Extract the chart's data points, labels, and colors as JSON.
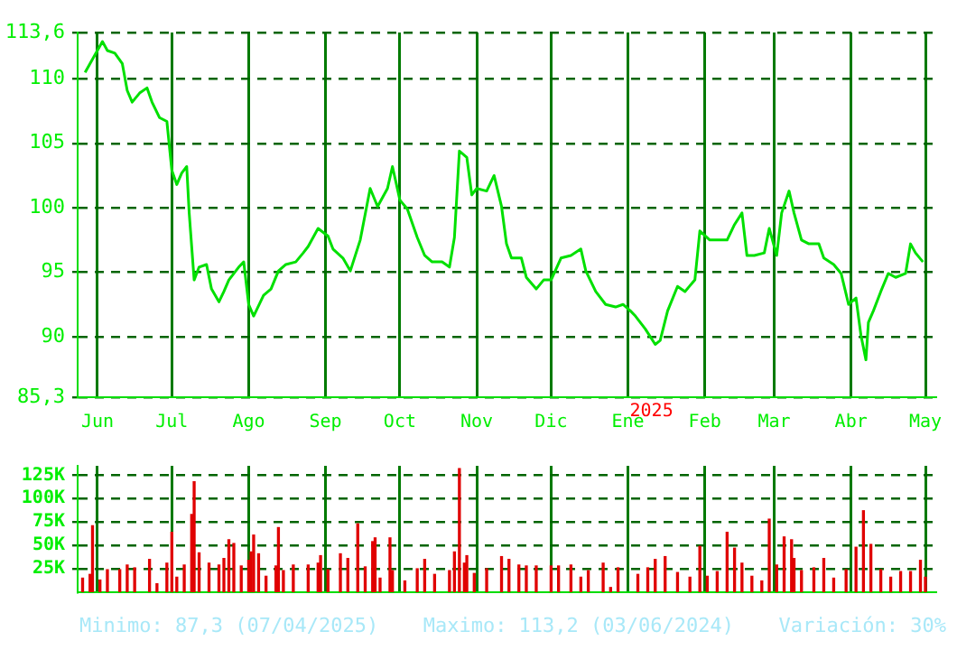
{
  "chart_data": [
    {
      "type": "line",
      "color": "#00e000",
      "x": [
        "2024-05-27",
        "2024-06-03",
        "2024-06-05",
        "2024-06-08",
        "2024-06-11",
        "2024-06-13",
        "2024-06-15",
        "2024-06-18",
        "2024-06-21",
        "2024-06-23",
        "2024-06-26",
        "2024-06-29",
        "2024-07-01",
        "2024-07-03",
        "2024-07-05",
        "2024-07-07",
        "2024-07-08",
        "2024-07-10",
        "2024-07-12",
        "2024-07-15",
        "2024-07-17",
        "2024-07-20",
        "2024-07-22",
        "2024-07-24",
        "2024-07-28",
        "2024-07-30",
        "2024-08-01",
        "2024-08-03",
        "2024-08-07",
        "2024-08-10",
        "2024-08-13",
        "2024-08-16",
        "2024-08-20",
        "2024-08-23",
        "2024-08-25",
        "2024-08-29",
        "2024-09-02",
        "2024-09-04",
        "2024-09-08",
        "2024-09-11",
        "2024-09-15",
        "2024-09-19",
        "2024-09-22",
        "2024-09-26",
        "2024-09-28",
        "2024-10-01",
        "2024-10-04",
        "2024-10-08",
        "2024-10-11",
        "2024-10-14",
        "2024-10-18",
        "2024-10-21",
        "2024-10-23",
        "2024-10-25",
        "2024-10-28",
        "2024-10-30",
        "2024-11-01",
        "2024-11-05",
        "2024-11-08",
        "2024-11-11",
        "2024-11-13",
        "2024-11-15",
        "2024-11-19",
        "2024-11-21",
        "2024-11-25",
        "2024-11-28",
        "2024-12-01",
        "2024-12-05",
        "2024-12-09",
        "2024-12-13",
        "2024-12-15",
        "2024-12-19",
        "2024-12-23",
        "2024-12-27",
        "2024-12-30",
        "2025-01-02",
        "2025-01-04",
        "2025-01-08",
        "2025-01-12",
        "2025-01-14",
        "2025-01-17",
        "2025-01-21",
        "2025-01-24",
        "2025-01-28",
        "2025-01-30",
        "2025-02-03",
        "2025-02-06",
        "2025-02-10",
        "2025-02-13",
        "2025-02-16",
        "2025-02-18",
        "2025-02-21",
        "2025-02-25",
        "2025-02-27",
        "2025-03-02",
        "2025-03-04",
        "2025-03-07",
        "2025-03-09",
        "2025-03-12",
        "2025-03-15",
        "2025-03-19",
        "2025-03-21",
        "2025-03-25",
        "2025-03-28",
        "2025-03-31",
        "2025-04-03",
        "2025-04-05",
        "2025-04-07",
        "2025-04-08",
        "2025-04-10",
        "2025-04-13",
        "2025-04-16",
        "2025-04-19",
        "2025-04-23",
        "2025-04-25",
        "2025-04-27",
        "2025-04-30"
      ],
      "values": [
        110.5,
        112.9,
        112.2,
        112.0,
        111.2,
        109.1,
        108.2,
        108.9,
        109.3,
        108.2,
        107.0,
        106.7,
        102.9,
        101.8,
        102.7,
        103.2,
        99.6,
        94.4,
        95.4,
        95.6,
        93.7,
        92.7,
        93.5,
        94.4,
        95.4,
        95.8,
        92.5,
        91.6,
        93.2,
        93.7,
        95.1,
        95.6,
        95.8,
        96.5,
        97.0,
        98.4,
        97.8,
        96.8,
        96.1,
        95.1,
        97.5,
        101.5,
        100.1,
        101.5,
        103.2,
        100.6,
        99.9,
        97.7,
        96.3,
        95.8,
        95.8,
        95.4,
        97.7,
        104.4,
        103.9,
        101.0,
        101.5,
        101.3,
        102.5,
        100.1,
        97.2,
        96.1,
        96.1,
        94.6,
        93.7,
        94.4,
        94.4,
        96.1,
        96.3,
        96.8,
        95.1,
        93.5,
        92.5,
        92.3,
        92.5,
        92.0,
        91.6,
        90.6,
        89.4,
        89.7,
        92.0,
        93.9,
        93.5,
        94.4,
        98.2,
        97.5,
        97.5,
        97.5,
        98.7,
        99.6,
        96.3,
        96.3,
        96.5,
        98.4,
        96.3,
        99.6,
        101.3,
        99.6,
        97.5,
        97.2,
        97.2,
        96.1,
        95.6,
        94.9,
        92.5,
        93.0,
        90.1,
        88.2,
        91.1,
        92.0,
        93.5,
        94.9,
        94.6,
        94.9,
        97.2,
        96.5,
        95.8
      ],
      "xlim": [
        "2024-05-24",
        "2025-05-05"
      ],
      "xticks": [
        {
          "value": "2024-06-01",
          "label": "Jun"
        },
        {
          "value": "2024-07-01",
          "label": "Jul"
        },
        {
          "value": "2024-08-01",
          "label": "Ago"
        },
        {
          "value": "2024-09-01",
          "label": "Sep"
        },
        {
          "value": "2024-10-01",
          "label": "Oct"
        },
        {
          "value": "2024-11-01",
          "label": "Nov"
        },
        {
          "value": "2024-12-01",
          "label": "Dic"
        },
        {
          "value": "2025-01-01",
          "label": "Ene"
        },
        {
          "value": "2025-02-01",
          "label": "Feb"
        },
        {
          "value": "2025-03-01",
          "label": "Mar"
        },
        {
          "value": "2025-04-01",
          "label": "Abr"
        },
        {
          "value": "2025-05-01",
          "label": "May"
        }
      ],
      "ylim": [
        85.3,
        113.6
      ],
      "yticks": [
        {
          "value": 85.3,
          "label": "85,3"
        },
        90,
        95,
        100,
        105,
        110,
        {
          "value": 113.6,
          "label": "113,6"
        }
      ],
      "grid": true,
      "annotations": [
        "2025"
      ]
    },
    {
      "type": "bar",
      "color": "#e00000",
      "x": [
        "2024-05-26",
        "2024-05-29",
        "2024-05-30",
        "2024-06-02",
        "2024-06-05",
        "2024-06-10",
        "2024-06-13",
        "2024-06-16",
        "2024-06-22",
        "2024-06-25",
        "2024-06-29",
        "2024-07-01",
        "2024-07-03",
        "2024-07-06",
        "2024-07-09",
        "2024-07-10",
        "2024-07-12",
        "2024-07-16",
        "2024-07-20",
        "2024-07-22",
        "2024-07-24",
        "2024-07-26",
        "2024-07-29",
        "2024-08-01",
        "2024-08-02",
        "2024-08-03",
        "2024-08-05",
        "2024-08-08",
        "2024-08-12",
        "2024-08-13",
        "2024-08-15",
        "2024-08-19",
        "2024-08-25",
        "2024-08-29",
        "2024-08-30",
        "2024-09-02",
        "2024-09-07",
        "2024-09-10",
        "2024-09-14",
        "2024-09-17",
        "2024-09-20",
        "2024-09-21",
        "2024-09-23",
        "2024-09-27",
        "2024-09-28",
        "2024-10-03",
        "2024-10-08",
        "2024-10-11",
        "2024-10-15",
        "2024-10-21",
        "2024-10-23",
        "2024-10-25",
        "2024-10-27",
        "2024-10-28",
        "2024-10-31",
        "2024-11-05",
        "2024-11-11",
        "2024-11-14",
        "2024-11-18",
        "2024-11-21",
        "2024-11-25",
        "2024-12-01",
        "2024-12-04",
        "2024-12-09",
        "2024-12-13",
        "2024-12-16",
        "2024-12-22",
        "2024-12-25",
        "2024-12-28",
        "2025-01-05",
        "2025-01-09",
        "2025-01-12",
        "2025-01-16",
        "2025-01-21",
        "2025-01-26",
        "2025-01-30",
        "2025-02-02",
        "2025-02-06",
        "2025-02-10",
        "2025-02-13",
        "2025-02-16",
        "2025-02-20",
        "2025-02-24",
        "2025-02-27",
        "2025-03-02",
        "2025-03-05",
        "2025-03-08",
        "2025-03-09",
        "2025-03-12",
        "2025-03-17",
        "2025-03-21",
        "2025-03-25",
        "2025-03-30",
        "2025-04-03",
        "2025-04-06",
        "2025-04-09",
        "2025-04-13",
        "2025-04-17",
        "2025-04-21",
        "2025-04-25",
        "2025-04-29",
        "2025-05-01"
      ],
      "xticks": [
        {
          "value": "2024-06-01",
          "label": null
        },
        {
          "value": "2024-07-01",
          "label": null
        },
        {
          "value": "2024-08-01",
          "label": null
        },
        {
          "value": "2024-09-01",
          "label": null
        },
        {
          "value": "2024-10-01",
          "label": null
        },
        {
          "value": "2024-11-01",
          "label": null
        },
        {
          "value": "2024-12-01",
          "label": null
        },
        {
          "value": "2025-01-01",
          "label": null
        },
        {
          "value": "2025-02-01",
          "label": null
        },
        {
          "value": "2025-03-01",
          "label": null
        },
        {
          "value": "2025-04-01",
          "label": null
        },
        {
          "value": "2025-05-01",
          "label": null
        }
      ],
      "values": [
        15000,
        19000,
        71000,
        13000,
        24000,
        24000,
        29000,
        26000,
        35000,
        9000,
        31000,
        64000,
        16000,
        29000,
        83000,
        118000,
        42000,
        31000,
        29000,
        36000,
        56000,
        52000,
        28000,
        34000,
        43000,
        61000,
        41000,
        17000,
        28000,
        69000,
        23000,
        29000,
        29000,
        31000,
        39000,
        24000,
        41000,
        36000,
        73000,
        27000,
        54000,
        58000,
        15000,
        58000,
        23000,
        12000,
        25000,
        35000,
        19000,
        23000,
        43000,
        132000,
        31000,
        39000,
        20000,
        25000,
        38000,
        35000,
        29000,
        28000,
        28000,
        28000,
        28000,
        29000,
        16000,
        23000,
        31000,
        5000,
        26000,
        19000,
        26000,
        35000,
        38000,
        21000,
        16000,
        49000,
        17000,
        22000,
        64000,
        47000,
        31000,
        17000,
        12000,
        78000,
        29000,
        59000,
        56000,
        36000,
        23000,
        26000,
        36000,
        15000,
        24000,
        48000,
        87000,
        51000,
        24000,
        16000,
        22000,
        22000,
        34000,
        16000
      ],
      "xlim": [
        "2024-05-24",
        "2025-05-05"
      ],
      "ylim": [
        0,
        135000
      ],
      "yticks": [
        {
          "value": 25000,
          "label": "25K"
        },
        {
          "value": 50000,
          "label": "50K"
        },
        {
          "value": 75000,
          "label": "75K"
        },
        {
          "value": 100000,
          "label": "100K"
        },
        {
          "value": 125000,
          "label": "125K"
        }
      ],
      "grid": true,
      "tick_labels": "y",
      "annotations": [
        "Minimo: 87,3 (07/04/2025)",
        "Maximo: 113,2 (03/06/2024)",
        "Variación: 30%"
      ]
    }
  ]
}
